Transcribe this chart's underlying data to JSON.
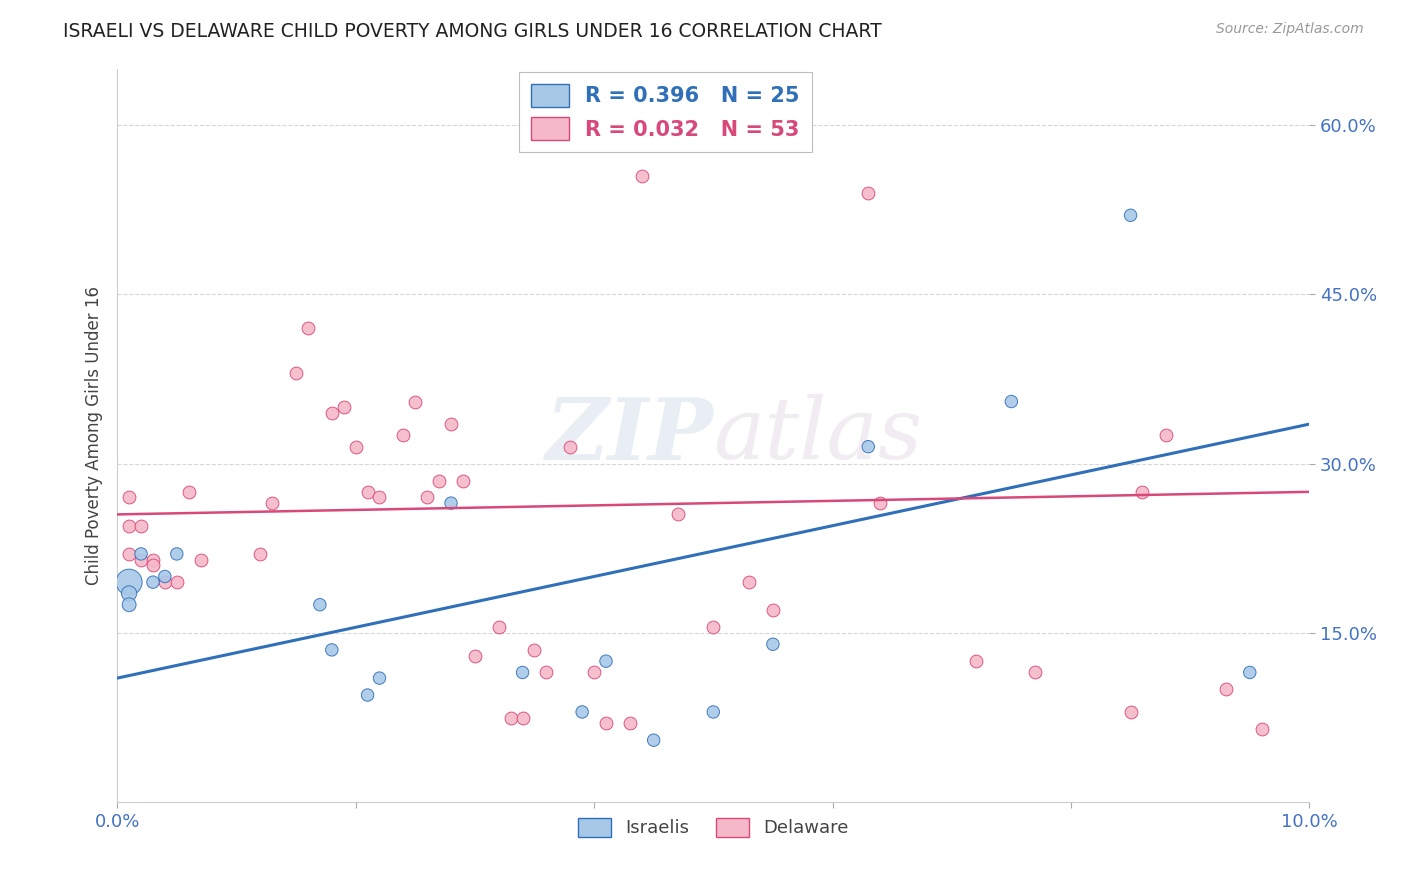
{
  "title": "ISRAELI VS DELAWARE CHILD POVERTY AMONG GIRLS UNDER 16 CORRELATION CHART",
  "source": "Source: ZipAtlas.com",
  "ylabel": "Child Poverty Among Girls Under 16",
  "xlim": [
    0.0,
    0.1
  ],
  "ylim": [
    0.0,
    0.65
  ],
  "yticks": [
    0.15,
    0.3,
    0.45,
    0.6
  ],
  "ytick_labels": [
    "15.0%",
    "30.0%",
    "45.0%",
    "60.0%"
  ],
  "xticks": [
    0.0,
    0.1
  ],
  "xtick_labels": [
    "0.0%",
    "10.0%"
  ],
  "israelis_R": 0.396,
  "israelis_N": 25,
  "delaware_R": 0.032,
  "delaware_N": 53,
  "israelis_color": "#a8c8e8",
  "delaware_color": "#f4b8c8",
  "israelis_line_color": "#3070b8",
  "delaware_line_color": "#d84878",
  "watermark": "ZIPatlas",
  "israelis_x": [
    0.001,
    0.001,
    0.001,
    0.002,
    0.003,
    0.004,
    0.005,
    0.017,
    0.018,
    0.021,
    0.022,
    0.028,
    0.034,
    0.039,
    0.041,
    0.045,
    0.05,
    0.055,
    0.063,
    0.075,
    0.085,
    0.095
  ],
  "israelis_y": [
    0.195,
    0.185,
    0.175,
    0.22,
    0.195,
    0.2,
    0.22,
    0.175,
    0.135,
    0.095,
    0.11,
    0.265,
    0.115,
    0.08,
    0.125,
    0.055,
    0.08,
    0.14,
    0.315,
    0.355,
    0.52,
    0.115
  ],
  "israelis_size": [
    350,
    120,
    100,
    80,
    80,
    80,
    80,
    80,
    80,
    80,
    80,
    80,
    80,
    80,
    80,
    80,
    80,
    80,
    80,
    80,
    80,
    80
  ],
  "delaware_x": [
    0.001,
    0.001,
    0.001,
    0.002,
    0.002,
    0.003,
    0.003,
    0.004,
    0.005,
    0.006,
    0.007,
    0.012,
    0.013,
    0.015,
    0.016,
    0.018,
    0.019,
    0.02,
    0.021,
    0.022,
    0.024,
    0.025,
    0.026,
    0.027,
    0.028,
    0.029,
    0.03,
    0.032,
    0.033,
    0.034,
    0.035,
    0.036,
    0.038,
    0.04,
    0.041,
    0.043,
    0.044,
    0.047,
    0.05,
    0.053,
    0.055,
    0.063,
    0.064,
    0.072,
    0.077,
    0.085,
    0.086,
    0.088,
    0.093,
    0.096
  ],
  "delaware_y": [
    0.27,
    0.245,
    0.22,
    0.245,
    0.215,
    0.215,
    0.21,
    0.195,
    0.195,
    0.275,
    0.215,
    0.22,
    0.265,
    0.38,
    0.42,
    0.345,
    0.35,
    0.315,
    0.275,
    0.27,
    0.325,
    0.355,
    0.27,
    0.285,
    0.335,
    0.285,
    0.13,
    0.155,
    0.075,
    0.075,
    0.135,
    0.115,
    0.315,
    0.115,
    0.07,
    0.07,
    0.555,
    0.255,
    0.155,
    0.195,
    0.17,
    0.54,
    0.265,
    0.125,
    0.115,
    0.08,
    0.275,
    0.325,
    0.1,
    0.065
  ],
  "regression_israelis": [
    0.11,
    0.335
  ],
  "regression_delaware": [
    0.255,
    0.275
  ]
}
